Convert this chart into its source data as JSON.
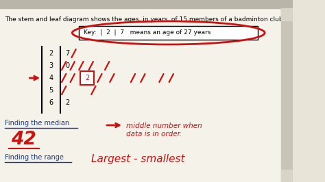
{
  "bg_color": "#e8e4d8",
  "page_color": "#f5f2ea",
  "title_text": "The stem and leaf diagram shows the ages, in years, of 15 members of a badminton club.",
  "key_text": "Key:  |  2  |  7   means an age of 27 years",
  "stems": [
    "2",
    "3",
    "4",
    "5",
    "6"
  ],
  "blue_color": "#1a3a8a",
  "red_color": "#cc1111",
  "median_label": "Finding the median",
  "median_value": "42",
  "range_label": "Finding the range",
  "range_note": "Largest - smallest"
}
